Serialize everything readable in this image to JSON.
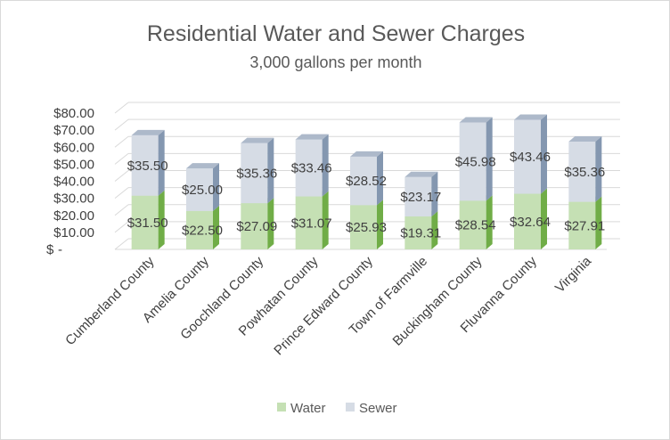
{
  "chart_data": {
    "type": "bar",
    "stacked": true,
    "title": "Residential Water and Sewer Charges",
    "subtitle": "3,000 gallons per month",
    "categories": [
      "Cumberland County",
      "Amelia County",
      "Goochland County",
      "Powhatan County",
      "Prince Edward County",
      "Town of Farmville",
      "Buckingham County",
      "Fluvanna County",
      "Virginia"
    ],
    "series": [
      {
        "name": "Water",
        "color": "#c5e0b4",
        "side_color": "#70ad47",
        "top_color": "#a9d18e",
        "values": [
          31.5,
          22.5,
          27.09,
          31.07,
          25.93,
          19.31,
          28.54,
          32.64,
          27.91
        ],
        "labels": [
          "$31.50",
          "$22.50",
          "$27.09",
          "$31.07",
          "$25.93",
          "$19.31",
          "$28.54",
          "$32.64",
          "$27.91"
        ]
      },
      {
        "name": "Sewer",
        "color": "#d6dce5",
        "side_color": "#8497b0",
        "top_color": "#adb9ca",
        "values": [
          35.5,
          25.0,
          35.36,
          33.46,
          28.52,
          23.17,
          45.98,
          43.46,
          35.36
        ],
        "labels": [
          "$35.50",
          "$25.00",
          "$35.36",
          "$33.46",
          "$28.52",
          "$23.17",
          "$45.98",
          "$43.46",
          "$35.36"
        ]
      }
    ],
    "ylim": [
      0,
      80
    ],
    "yticks": [
      0,
      10,
      20,
      30,
      40,
      50,
      60,
      70,
      80
    ],
    "ytick_labels": [
      "$-",
      "$10.00",
      "$20.00",
      "$30.00",
      "$40.00",
      "$50.00",
      "$60.00",
      "$70.00",
      "$80.00"
    ],
    "grid": true,
    "legend_position": "bottom",
    "xlabel": "",
    "ylabel": ""
  }
}
